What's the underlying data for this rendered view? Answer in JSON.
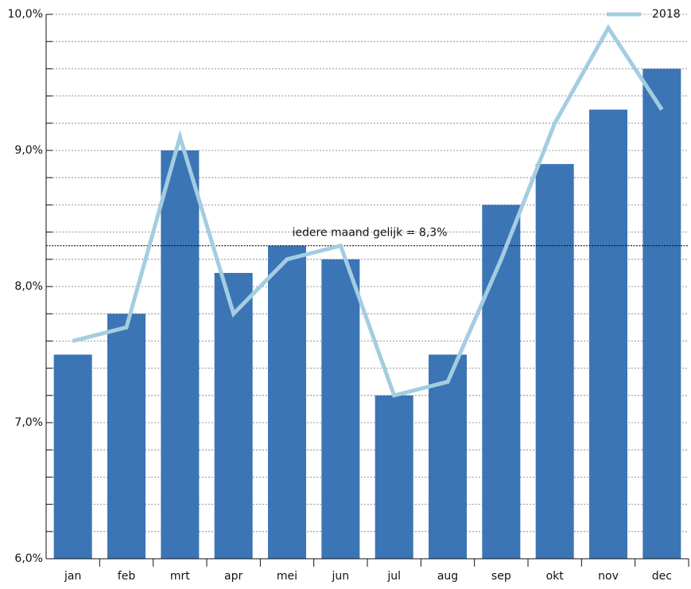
{
  "chart_data": {
    "type": "bar-line",
    "categories": [
      "jan",
      "feb",
      "mrt",
      "apr",
      "mei",
      "jun",
      "jul",
      "aug",
      "sep",
      "okt",
      "nov",
      "dec"
    ],
    "series": [
      {
        "type": "bar",
        "color": "#3b75b5",
        "values": [
          7.5,
          7.8,
          9.0,
          8.1,
          8.3,
          8.2,
          7.2,
          7.5,
          8.6,
          8.9,
          9.3,
          9.6
        ]
      },
      {
        "type": "line",
        "name": "2018",
        "color": "#a3cde0",
        "values": [
          7.6,
          7.7,
          9.1,
          7.8,
          8.2,
          8.3,
          7.2,
          7.3,
          8.2,
          9.2,
          9.9,
          9.3
        ]
      }
    ],
    "ylim": [
      6.0,
      10.0
    ],
    "yticks": [
      {
        "value": 6.0,
        "label": "6,0%"
      },
      {
        "value": 7.0,
        "label": "7,0%"
      },
      {
        "value": 8.0,
        "label": "8,0%"
      },
      {
        "value": 9.0,
        "label": "9,0%"
      },
      {
        "value": 10.0,
        "label": "10,0%"
      }
    ],
    "minor_yticks": [
      6.2,
      6.4,
      6.6,
      6.8,
      7.2,
      7.4,
      7.6,
      7.8,
      8.2,
      8.4,
      8.6,
      8.8,
      9.2,
      9.4,
      9.6,
      9.8
    ],
    "grid": true,
    "legend": "top-right",
    "reference_line": {
      "value": 8.3,
      "label": "iedere maand gelijk = 8,3%"
    }
  }
}
